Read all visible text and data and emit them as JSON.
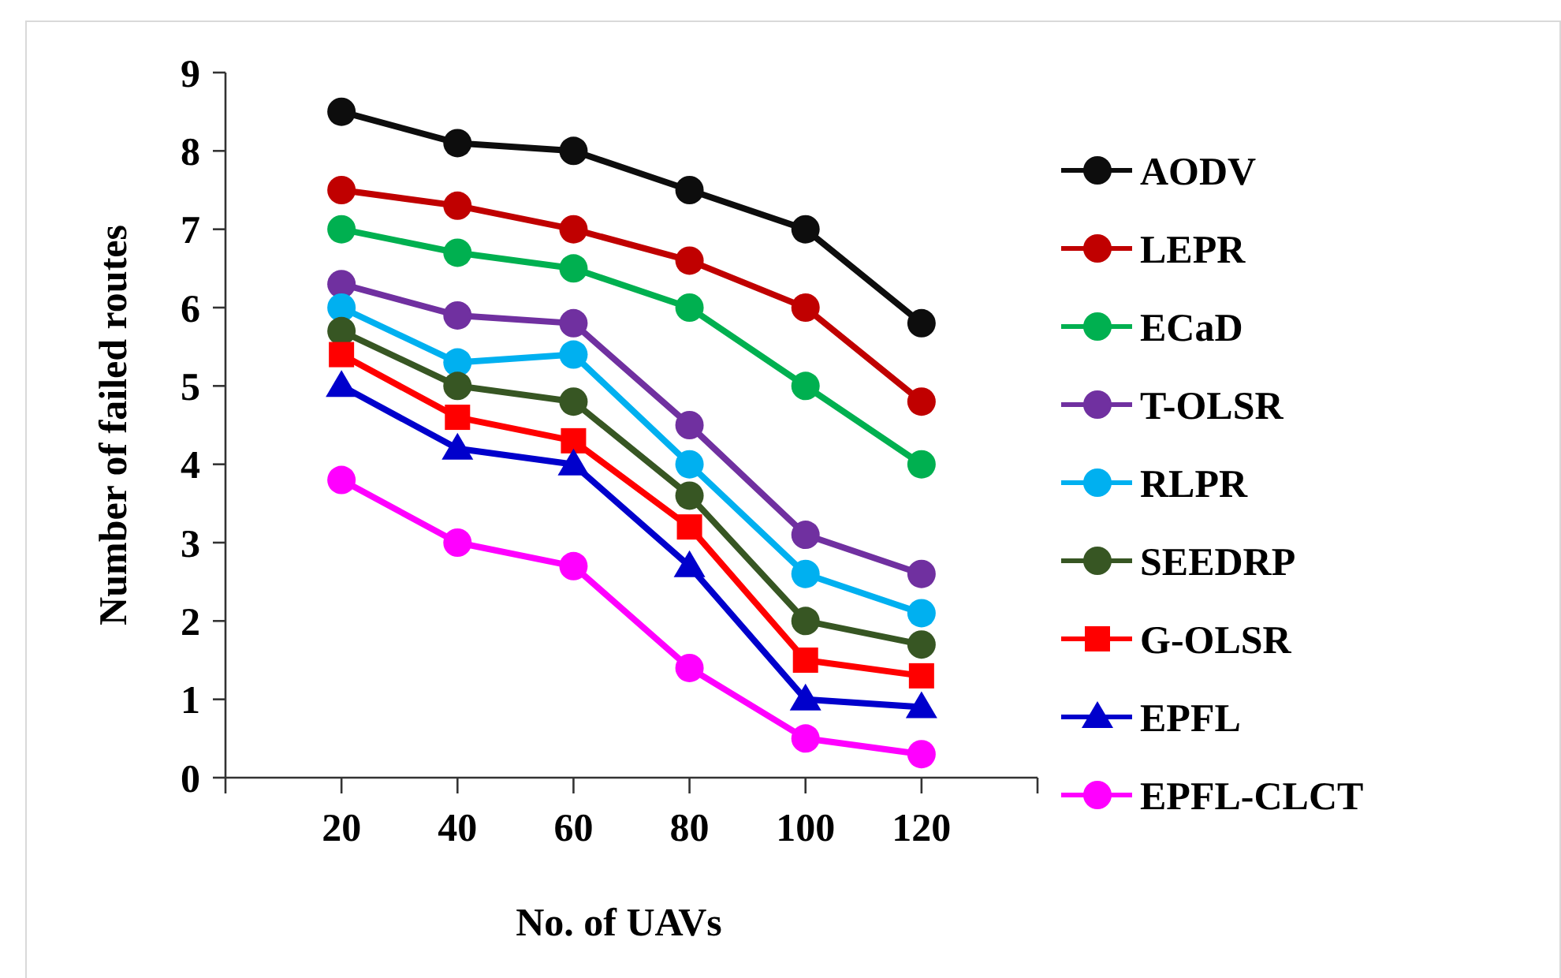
{
  "chart_data": {
    "type": "line",
    "xlabel": "No. of UAVs",
    "ylabel": "Number of failed routes",
    "x": [
      20,
      40,
      60,
      80,
      100,
      120
    ],
    "xlim": [
      0,
      140
    ],
    "xticks": [
      {
        "value": 0,
        "label": null
      },
      20,
      40,
      60,
      80,
      100,
      120,
      {
        "value": 140,
        "label": null
      }
    ],
    "ylim": [
      0,
      9
    ],
    "yticks": [
      0,
      1,
      2,
      3,
      4,
      5,
      6,
      7,
      8,
      9
    ],
    "grid": false,
    "legend": "right",
    "marker": "circle",
    "line_style": "solid",
    "series": [
      {
        "name": "AODV",
        "color": "#0d0d0d",
        "values": [
          8.5,
          8.1,
          8.0,
          7.5,
          7.0,
          5.8
        ]
      },
      {
        "name": "LEPR",
        "color": "#c00000",
        "values": [
          7.5,
          7.3,
          7.0,
          6.6,
          6.0,
          4.8
        ]
      },
      {
        "name": "ECaD",
        "color": "#00b050",
        "values": [
          7.0,
          6.7,
          6.5,
          6.0,
          5.0,
          4.0
        ]
      },
      {
        "name": "T-OLSR",
        "color": "#7030a0",
        "values": [
          6.3,
          5.9,
          5.8,
          4.5,
          3.1,
          2.6
        ]
      },
      {
        "name": "RLPR",
        "color": "#00b0f0",
        "values": [
          6.0,
          5.3,
          5.4,
          4.0,
          2.6,
          2.1
        ]
      },
      {
        "name": "SEEDRP",
        "color": "#375623",
        "values": [
          5.7,
          5.0,
          4.8,
          3.6,
          2.0,
          1.7
        ]
      },
      {
        "name": "G-OLSR",
        "color": "#ff0000",
        "marker": "square",
        "values": [
          5.4,
          4.6,
          4.3,
          3.2,
          1.5,
          1.3
        ]
      },
      {
        "name": "EPFL",
        "color": "#0000cc",
        "marker": "triangle",
        "values": [
          5.0,
          4.2,
          4.0,
          2.7,
          1.0,
          0.9
        ]
      },
      {
        "name": "EPFL-CLCT",
        "color": "#ff00ff",
        "values": [
          3.8,
          3.0,
          2.7,
          1.4,
          0.5,
          0.3
        ]
      }
    ]
  }
}
